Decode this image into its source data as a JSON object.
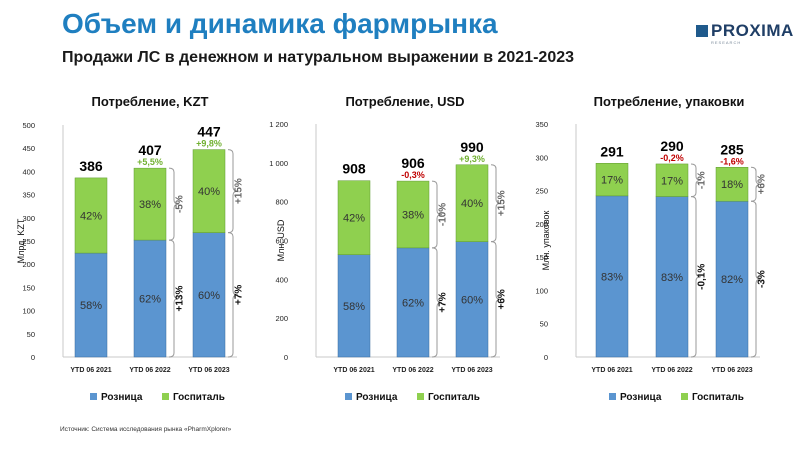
{
  "header": {
    "title": "Объем и динамика фармрынка",
    "subtitle": "Продажи ЛС в денежном и натуральном выражении в 2021-2023"
  },
  "logo": {
    "text": "PROXIMA",
    "tagline": "RESEARCH"
  },
  "legend": {
    "retail": "Розница",
    "hospital": "Госпиталь"
  },
  "colors": {
    "retail": "#5b95d0",
    "hospital": "#8fd04f",
    "negative": "#c00000",
    "positive": "#70b030",
    "title": "#1f7fc0"
  },
  "source": "Источник: Система исследования рынка «PharmXplorer»",
  "chart_data": [
    {
      "type": "bar",
      "stacked": true,
      "title": "Потребление, KZT",
      "ylabel": "Млрд. KZT",
      "ylim": [
        0,
        500
      ],
      "yticks": [
        "0",
        "50",
        "100",
        "150",
        "200",
        "250",
        "300",
        "350",
        "400",
        "450",
        "500"
      ],
      "categories": [
        "YTD 06 2021",
        "YTD 06 2022",
        "YTD 06 2023"
      ],
      "totals": [
        386,
        407,
        447
      ],
      "total_labels": [
        "386",
        "407",
        "447"
      ],
      "growth_labels": [
        "",
        "+5,5%",
        "+9,8%"
      ],
      "series": [
        {
          "name": "Розница",
          "values": [
            224,
            252,
            268
          ],
          "labels": [
            "58%",
            "62%",
            "60%"
          ]
        },
        {
          "name": "Госпиталь",
          "values": [
            162,
            155,
            179
          ],
          "labels": [
            "42%",
            "38%",
            "40%"
          ]
        }
      ],
      "annotations": {
        "hospital_2122": "-5%",
        "hospital_2223": "+15%",
        "retail_2122": "+13%",
        "retail_2223": "+7%"
      }
    },
    {
      "type": "bar",
      "stacked": true,
      "title": "Потребление, USD",
      "ylabel": "Млн. USD",
      "ylim": [
        0,
        1200
      ],
      "yticks": [
        "0",
        "200",
        "400",
        "600",
        "800",
        "1 000",
        "1 200"
      ],
      "categories": [
        "YTD 06 2021",
        "YTD 06 2022",
        "YTD 06 2023"
      ],
      "totals": [
        908,
        906,
        990
      ],
      "total_labels": [
        "908",
        "906",
        "990"
      ],
      "growth_labels": [
        "",
        "-0,3%",
        "+9,3%"
      ],
      "series": [
        {
          "name": "Розница",
          "values": [
            527,
            562,
            594
          ],
          "labels": [
            "58%",
            "62%",
            "60%"
          ]
        },
        {
          "name": "Госпиталь",
          "values": [
            381,
            344,
            396
          ],
          "labels": [
            "42%",
            "38%",
            "40%"
          ]
        }
      ],
      "annotations": {
        "hospital_2122": "-10%",
        "hospital_2223": "+15%",
        "retail_2122": "+7%",
        "retail_2223": "+6%"
      }
    },
    {
      "type": "bar",
      "stacked": true,
      "title": "Потребление, упаковки",
      "ylabel": "Млн. упаковок",
      "ylim": [
        0,
        350
      ],
      "yticks": [
        "0",
        "50",
        "100",
        "150",
        "200",
        "250",
        "300",
        "350"
      ],
      "categories": [
        "YTD 06 2021",
        "YTD 06 2022",
        "YTD 06 2023"
      ],
      "totals": [
        291,
        290,
        285
      ],
      "total_labels": [
        "291",
        "290",
        "285"
      ],
      "growth_labels": [
        "",
        "-0,2%",
        "-1,6%"
      ],
      "series": [
        {
          "name": "Розница",
          "values": [
            242,
            241,
            234
          ],
          "labels": [
            "83%",
            "83%",
            "82%"
          ]
        },
        {
          "name": "Госпиталь",
          "values": [
            49,
            49,
            51
          ],
          "labels": [
            "17%",
            "17%",
            "18%"
          ]
        }
      ],
      "annotations": {
        "hospital_2122": "-1%",
        "hospital_2223": "+6%",
        "retail_2122": "-0,1%",
        "retail_2223": "-3%"
      }
    }
  ]
}
